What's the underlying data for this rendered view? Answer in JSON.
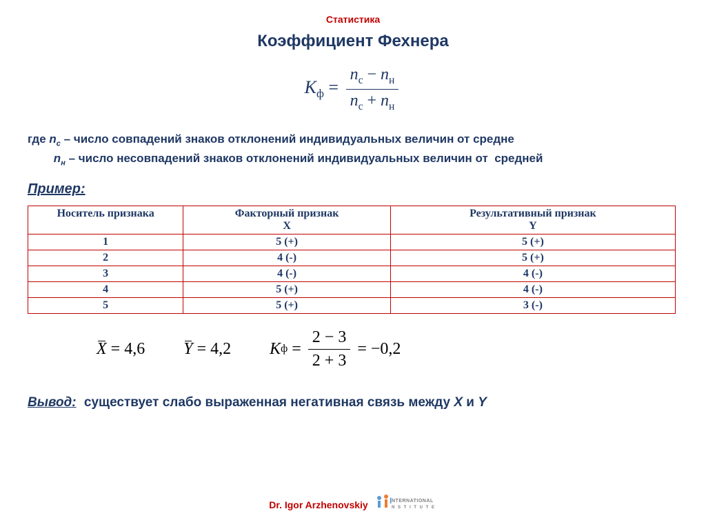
{
  "colors": {
    "red": "#c00000",
    "dark_blue": "#1f3864",
    "table_border": "#c00000",
    "table_header_text": "#1f3864",
    "table_cell_text": "#1f3864",
    "black": "#000000"
  },
  "header": {
    "top_label": "Статистика",
    "title": "Коэффициент Фехнера"
  },
  "formula_main": {
    "lhs_var": "K",
    "lhs_sub": "ф",
    "num_a_var": "n",
    "num_a_sub": "с",
    "num_op": "−",
    "num_b_var": "n",
    "num_b_sub": "н",
    "den_a_var": "n",
    "den_a_sub": "с",
    "den_op": "+",
    "den_b_var": "n",
    "den_b_sub": "н"
  },
  "definitions": {
    "prefix": "где ",
    "line1_var": "n",
    "line1_sub": "с",
    "line1_text": " – число совпадений знаков отклонений индивидуальных величин от средне",
    "line2_indent": "        ",
    "line2_var": "n",
    "line2_sub": "н",
    "line2_text": " – число несовпадений знаков отклонений индивидуальных величин от  средней"
  },
  "example_label": "Пример:",
  "table": {
    "columns": [
      {
        "header": "Носитель признака",
        "sub": "",
        "width": "24%"
      },
      {
        "header": "Факторный признак",
        "sub": "X",
        "width": "32%"
      },
      {
        "header": "Результативный признак",
        "sub": "Y",
        "width": "44%"
      }
    ],
    "rows": [
      [
        "1",
        "5 (+)",
        "5 (+)"
      ],
      [
        "2",
        "4 (-)",
        "5 (+)"
      ],
      [
        "3",
        "4 (-)",
        "4 (-)"
      ],
      [
        "4",
        "5 (+)",
        "4 (-)"
      ],
      [
        "5",
        "5 (+)",
        "3 (-)"
      ]
    ]
  },
  "result_formula": {
    "xbar_var": "X",
    "xbar_eq": "= 4,6",
    "ybar_var": "Y",
    "ybar_eq": "= 4,2",
    "kf_var": "K",
    "kf_sub": "ф",
    "kf_num": "2 − 3",
    "kf_den": "2 + 3",
    "kf_result": "= −0,2"
  },
  "conclusion": {
    "label": "Вывод:",
    "text_part1": " существует слабо выраженная негативная связь между ",
    "var_x": "X",
    "and": " и ",
    "var_y": "Y"
  },
  "footer": {
    "author": "Dr. Igor Arzhenovskiy",
    "logo_top": "I",
    "logo_text": "NTERNATIONAL",
    "logo_sub": "N S T I T U T E"
  }
}
